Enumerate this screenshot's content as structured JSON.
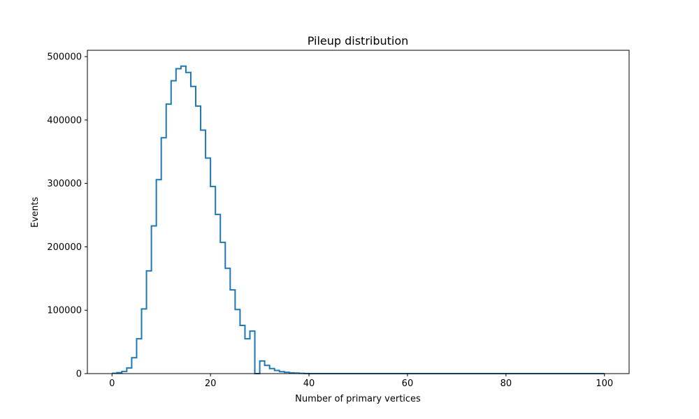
{
  "colors": {
    "series": "#1f77b4"
  },
  "chart_data": {
    "type": "step",
    "title": "Pileup distribution",
    "xlabel": "Number of primary vertices",
    "ylabel": "Events",
    "xlim": [
      -5,
      105
    ],
    "ylim": [
      0,
      510000
    ],
    "xticks": [
      0,
      20,
      40,
      60,
      80,
      100
    ],
    "yticks": [
      0,
      100000,
      200000,
      300000,
      400000,
      500000
    ],
    "grid": false,
    "series": [
      {
        "bin_edges": [
          0,
          1,
          2,
          3,
          4,
          5,
          6,
          7,
          8,
          9,
          10,
          11,
          12,
          13,
          14,
          15,
          16,
          17,
          18,
          19,
          20,
          21,
          22,
          23,
          24,
          25,
          26,
          27,
          28,
          29,
          30,
          31,
          32,
          33,
          34,
          35,
          36,
          37,
          38,
          39,
          40,
          100
        ],
        "values": [
          500,
          1500,
          3500,
          9000,
          25000,
          55000,
          102000,
          162000,
          233000,
          306000,
          372000,
          425000,
          462000,
          481000,
          485000,
          475000,
          453000,
          422000,
          384000,
          340000,
          295000,
          251000,
          207000,
          166000,
          132000,
          101000,
          76000,
          55000,
          67000,
          0,
          20000,
          13000,
          8000,
          5000,
          3000,
          2000,
          1200,
          800,
          400,
          200,
          50
        ]
      }
    ]
  }
}
